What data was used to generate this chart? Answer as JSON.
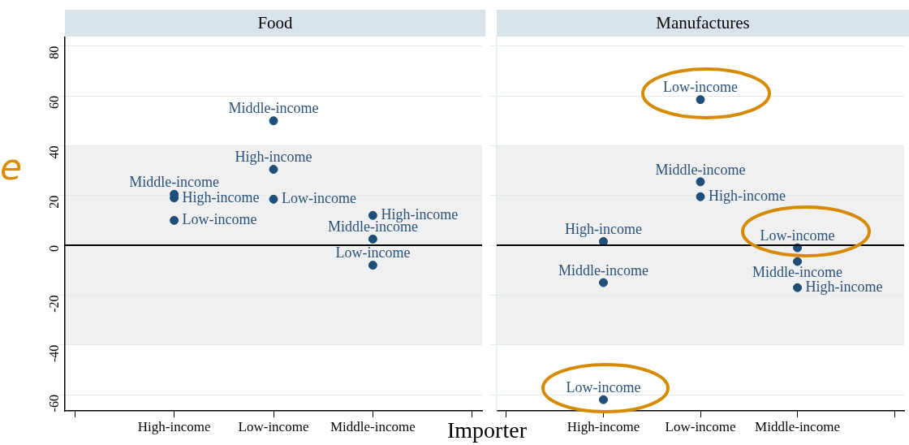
{
  "chart_data": [
    {
      "type": "scatter",
      "title": "Food",
      "xlabel": "Importer",
      "ylabel": "e",
      "categories": [
        "High-income",
        "Low-income",
        "Middle-income"
      ],
      "series": [
        {
          "color": "#1f4e79",
          "x": [
            "High-income",
            "High-income",
            "High-income",
            "Low-income",
            "Low-income",
            "Low-income",
            "Middle-income",
            "Middle-income",
            "Middle-income"
          ],
          "values": [
            20.5,
            19,
            10,
            50,
            30.5,
            18.5,
            12,
            2.5,
            -8
          ],
          "value_labels": [
            "Middle-income",
            "High-income",
            "Low-income",
            "Middle-income",
            "High-income",
            "Low-income",
            "High-income",
            "Middle-income",
            "Low-income"
          ]
        }
      ],
      "ylim": [
        -66.5,
        83.5
      ],
      "yticks": [
        -60,
        -40,
        -20,
        0,
        20,
        40,
        60,
        80
      ],
      "grid": "y",
      "marker": "circle",
      "bands": [
        {
          "axis": "y",
          "from": -40,
          "to": 40,
          "color": "#f0f0f0"
        }
      ],
      "ref_lines": [
        {
          "axis": "y",
          "value": 0,
          "color": "#000000"
        }
      ]
    },
    {
      "type": "scatter",
      "title": "Manufactures",
      "categories": [
        "High-income",
        "Low-income",
        "Middle-income"
      ],
      "series": [
        {
          "color": "#1f4e79",
          "x": [
            "High-income",
            "High-income",
            "High-income",
            "Low-income",
            "Low-income",
            "Low-income",
            "Middle-income",
            "Middle-income",
            "Middle-income"
          ],
          "values": [
            1.5,
            -15,
            -62,
            58.5,
            25.5,
            19.5,
            -1,
            -6.5,
            -17
          ],
          "value_labels": [
            "High-income",
            "Middle-income",
            "Low-income",
            "Low-income",
            "Middle-income",
            "High-income",
            "Low-income",
            "Middle-income",
            "High-income"
          ]
        }
      ],
      "ylim": [
        -66.5,
        83.5
      ],
      "yticks": [
        -60,
        -40,
        -20,
        0,
        20,
        40,
        60,
        80
      ],
      "grid": "y",
      "marker": "circle",
      "tick_labels": "x",
      "bands": [
        {
          "axis": "y",
          "from": -40,
          "to": 40,
          "color": "#f0f0f0"
        }
      ],
      "ref_lines": [
        {
          "axis": "y",
          "value": 0,
          "color": "#000000"
        }
      ]
    }
  ]
}
